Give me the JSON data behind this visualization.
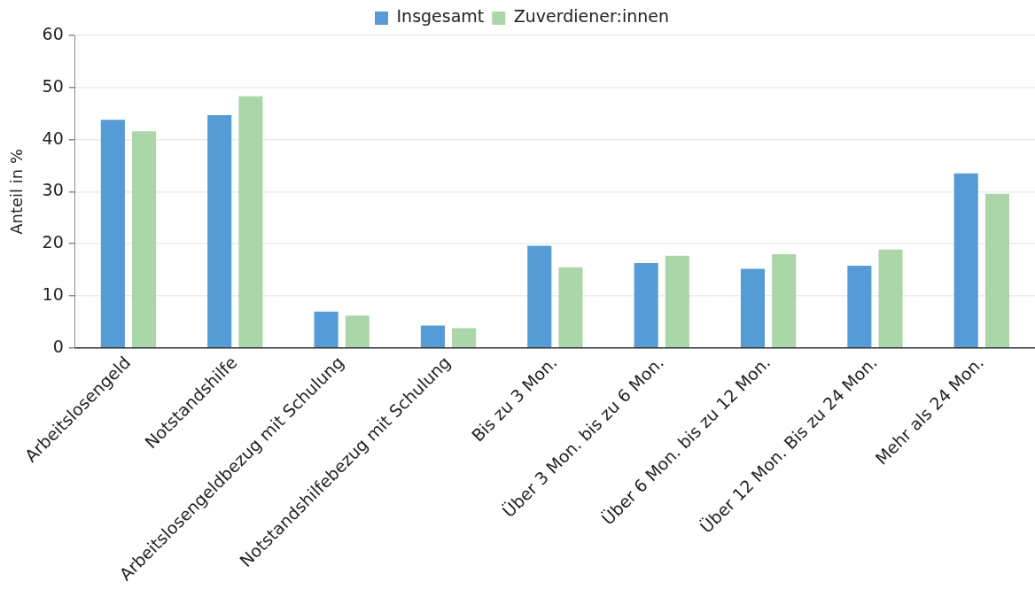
{
  "chart_data": {
    "type": "bar",
    "ylabel": "Anteil in %",
    "categories": [
      "Arbeitslosengeld",
      "Notstandshilfe",
      "Arbeitslosengeldbezug mit Schulung",
      "Notstandshilfebezug mit Schulung",
      "Bis zu 3 Mon.",
      "Über 3 Mon. bis zu 6 Mon.",
      "Über 6 Mon. bis zu 12 Mon.",
      "Über 12 Mon. Bis zu 24 Mon.",
      "Mehr als 24 Mon."
    ],
    "series": [
      {
        "name": "Insgesamt",
        "color": "#559bd5",
        "values": [
          43.8,
          44.7,
          7.0,
          4.3,
          19.6,
          16.3,
          15.2,
          15.8,
          33.5
        ]
      },
      {
        "name": "Zuverdiener:innen",
        "color": "#abd6a8",
        "values": [
          41.6,
          48.3,
          6.2,
          3.8,
          15.5,
          17.7,
          18.0,
          18.9,
          29.6
        ]
      }
    ],
    "ylim": [
      0,
      60
    ],
    "yticks": [
      0,
      10,
      20,
      30,
      40,
      50,
      60
    ],
    "grid": "y",
    "legend": "top"
  }
}
